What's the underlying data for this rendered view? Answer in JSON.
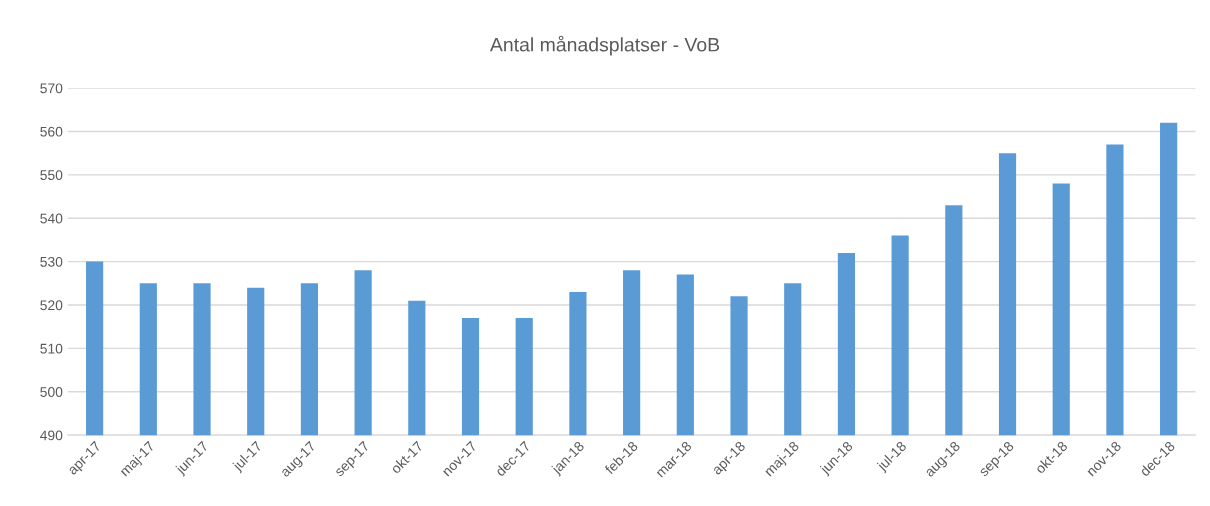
{
  "chart_data": {
    "type": "bar",
    "title": "Antal månadsplatser - VoB",
    "categories": [
      "apr-17",
      "maj-17",
      "jun-17",
      "jul-17",
      "aug-17",
      "sep-17",
      "okt-17",
      "nov-17",
      "dec-17",
      "jan-18",
      "feb-18",
      "mar-18",
      "apr-18",
      "maj-18",
      "jun-18",
      "jul-18",
      "aug-18",
      "sep-18",
      "okt-18",
      "nov-18",
      "dec-18"
    ],
    "values": [
      530,
      525,
      525,
      524,
      525,
      528,
      521,
      517,
      517,
      523,
      528,
      527,
      522,
      525,
      532,
      536,
      543,
      555,
      548,
      557,
      562
    ],
    "color": "#5b9bd5",
    "ylim": [
      490,
      570
    ],
    "yticks": [
      490,
      500,
      510,
      520,
      530,
      540,
      550,
      560,
      570
    ],
    "grid": "y",
    "legend": false
  }
}
